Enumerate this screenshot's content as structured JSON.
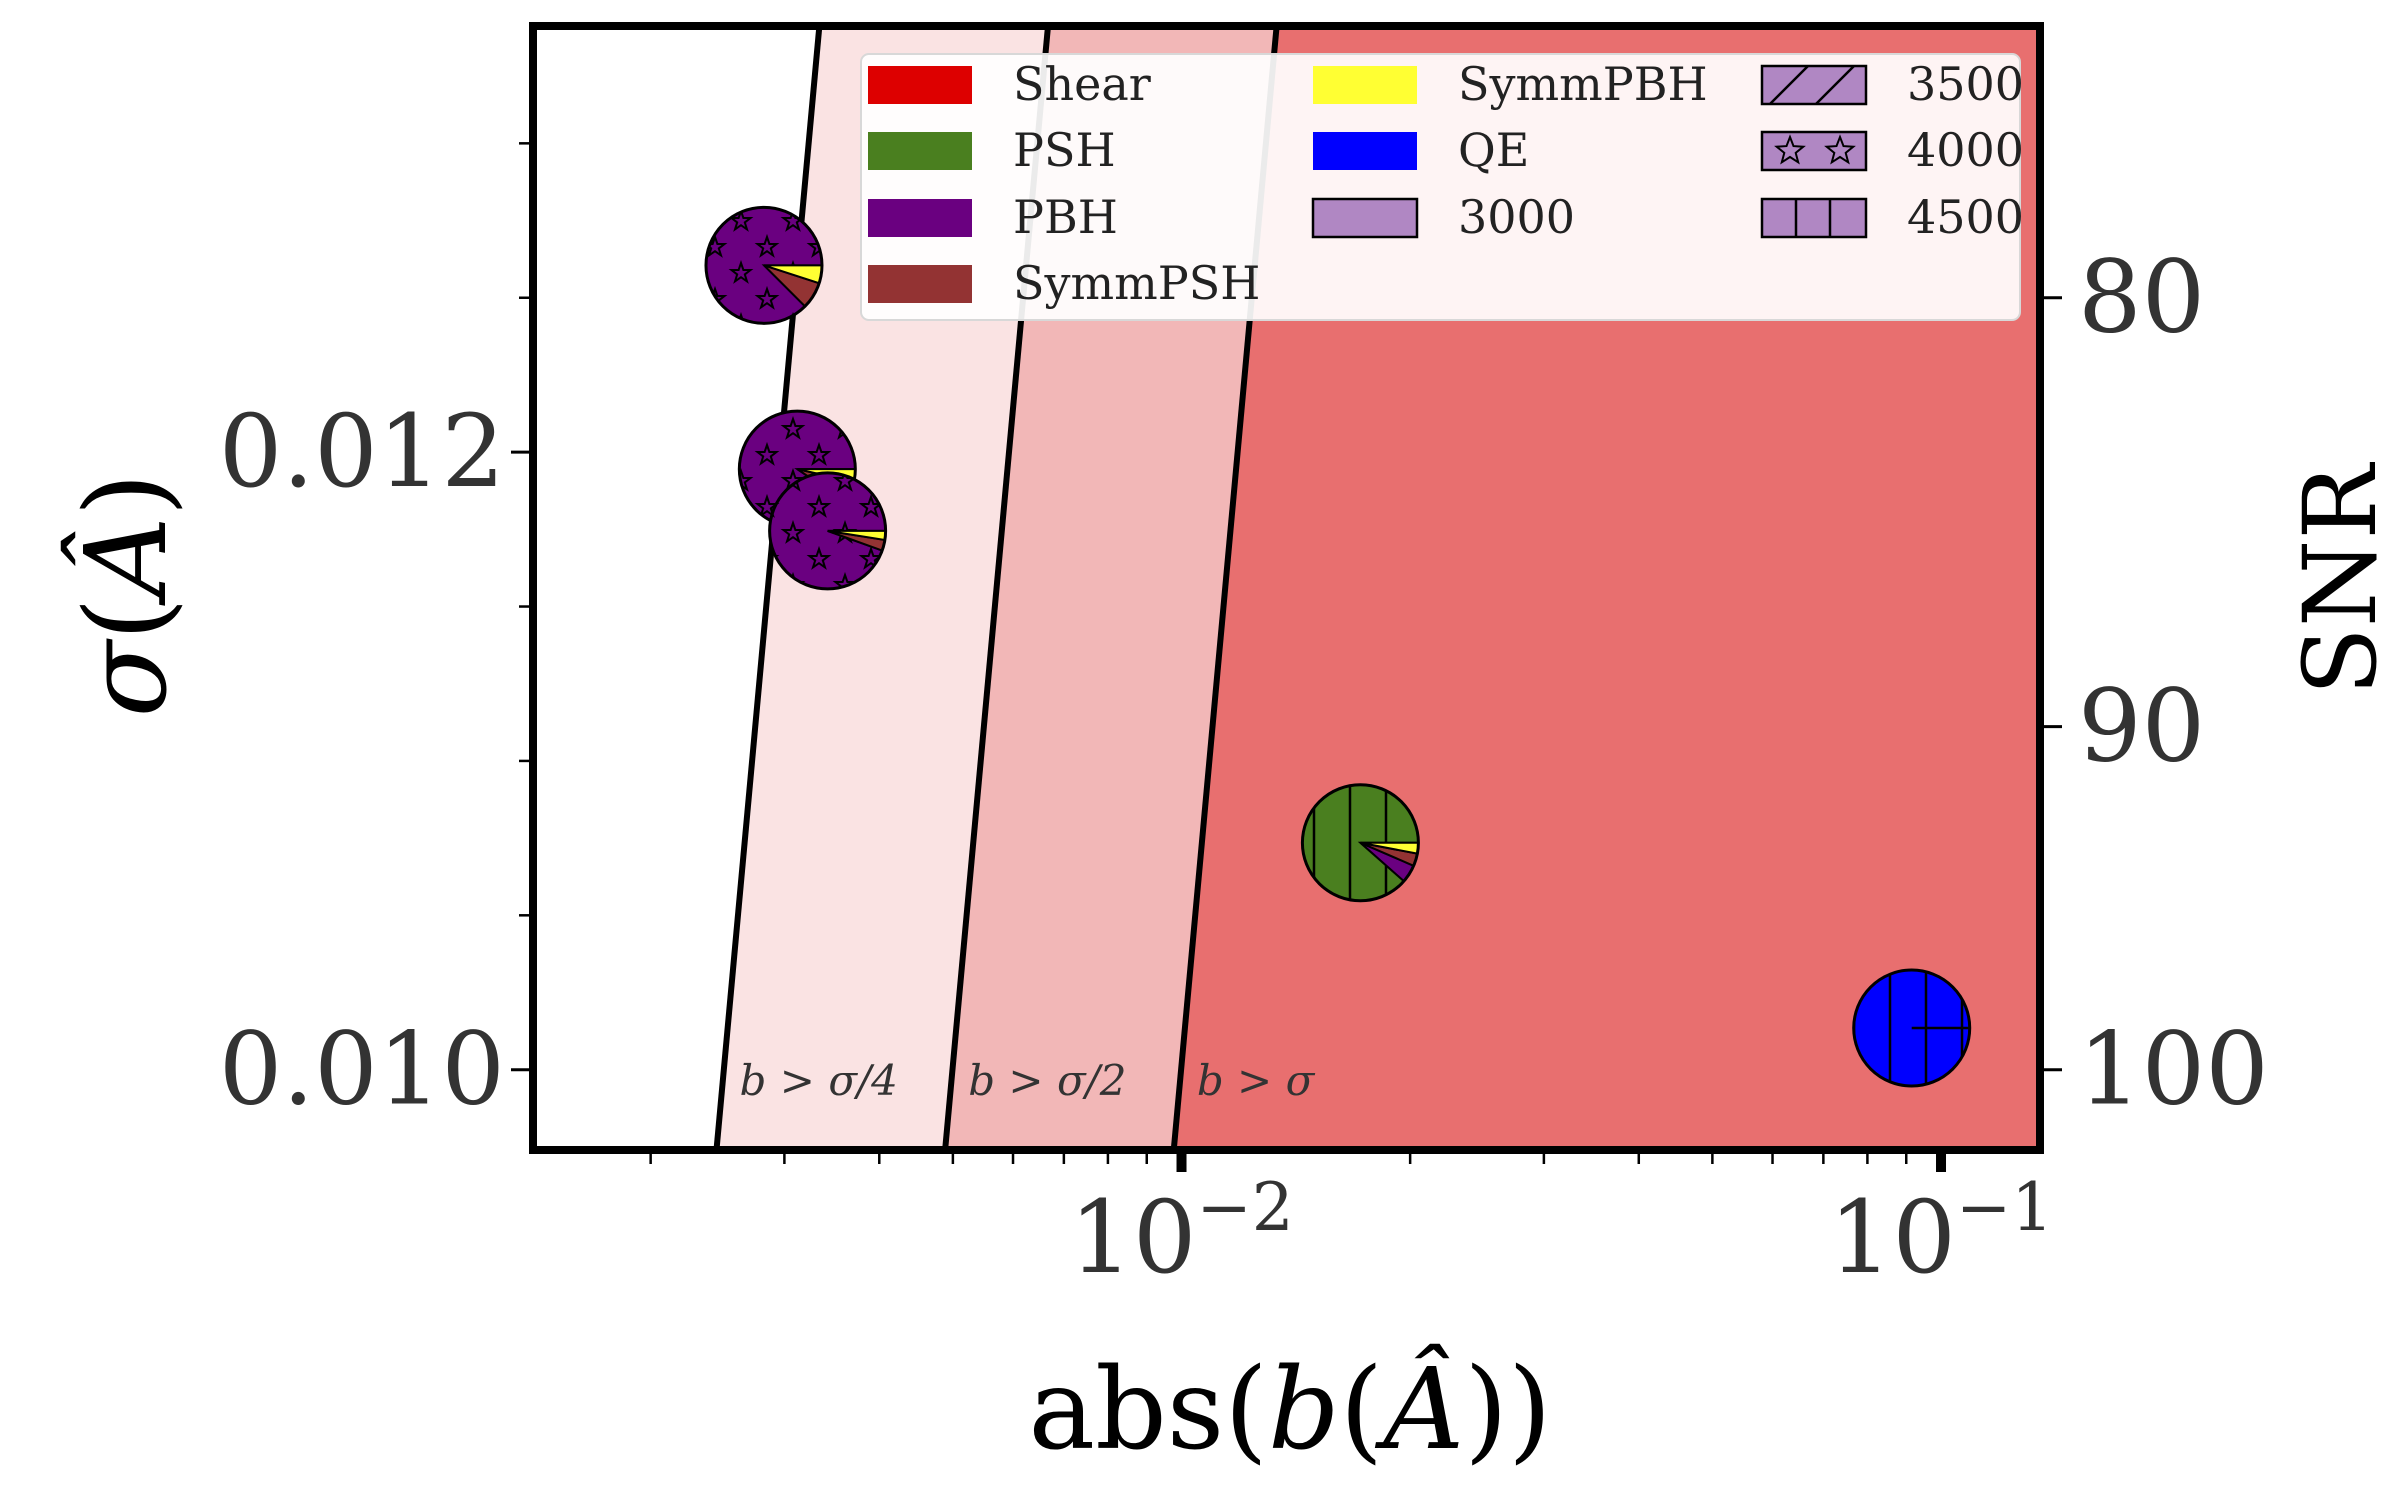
{
  "chart_data": {
    "type": "scatter",
    "subtype": "pie-markers",
    "xlabel": "abs(b(Â))",
    "ylabel": "σ(Â)",
    "y2label": "SNR",
    "x_scale": "log",
    "xlim": [
      0.0014,
      0.135
    ],
    "ylim": [
      0.00974,
      0.01338
    ],
    "x_ticks": [
      {
        "value": 0.01,
        "base": "10",
        "exp": "−2"
      },
      {
        "value": 0.1,
        "base": "10",
        "exp": "−1"
      }
    ],
    "x_minor_ticks": [
      0.002,
      0.003,
      0.004,
      0.005,
      0.006,
      0.007,
      0.008,
      0.009,
      0.02,
      0.03,
      0.04,
      0.05,
      0.06,
      0.07,
      0.08,
      0.09
    ],
    "y_ticks": [
      {
        "value": 0.01,
        "label": "0.010"
      },
      {
        "value": 0.012,
        "label": "0.012"
      }
    ],
    "y_minor_ticks": [
      0.0105,
      0.011,
      0.0115,
      0.0125,
      0.013
    ],
    "snr_ticks": [
      {
        "value": 80,
        "label": "80"
      },
      {
        "value": 90,
        "label": "90"
      },
      {
        "value": 100,
        "label": "100"
      }
    ],
    "regions": [
      {
        "label": "b > σ/4",
        "factor": 0.25,
        "color": "#fae3e3"
      },
      {
        "label": "b > σ/2",
        "factor": 0.5,
        "color": "#f2b7b7"
      },
      {
        "label": "b > σ",
        "factor": 1.0,
        "color": "#e86f6f"
      }
    ],
    "series": [
      {
        "name": "Shear",
        "color": "#dd0000"
      },
      {
        "name": "PSH",
        "color": "#4a7f1f"
      },
      {
        "name": "PBH",
        "color": "#6a0080"
      },
      {
        "name": "SymmPSH",
        "color": "#933333"
      },
      {
        "name": "SymmPBH",
        "color": "#ffff33"
      },
      {
        "name": "QE",
        "color": "#0000ff"
      }
    ],
    "hatch_legend": [
      {
        "name": "3000",
        "hatch": "none"
      },
      {
        "name": "3500",
        "hatch": "slash"
      },
      {
        "name": "4000",
        "hatch": "star"
      },
      {
        "name": "4500",
        "hatch": "vline"
      }
    ],
    "points": [
      {
        "x": 0.00282,
        "y": 0.012605,
        "hatch": "star",
        "fractions": [
          [
            "PBH",
            0.875
          ],
          [
            "SymmPSH",
            0.075
          ],
          [
            "SymmPBH",
            0.05
          ]
        ]
      },
      {
        "x": 0.00312,
        "y": 0.011945,
        "hatch": "star",
        "fractions": [
          [
            "PBH",
            0.905
          ],
          [
            "SymmPSH",
            0.06
          ],
          [
            "SymmPBH",
            0.035
          ]
        ]
      },
      {
        "x": 0.00342,
        "y": 0.011745,
        "hatch": "star",
        "fractions": [
          [
            "PBH",
            0.945
          ],
          [
            "SymmPSH",
            0.03
          ],
          [
            "SymmPBH",
            0.025
          ]
        ]
      },
      {
        "x": 0.0172,
        "y": 0.010735,
        "hatch": "vline",
        "fractions": [
          [
            "PSH",
            0.885
          ],
          [
            "PBH",
            0.05
          ],
          [
            "SymmPSH",
            0.035
          ],
          [
            "SymmPBH",
            0.03
          ]
        ]
      },
      {
        "x": 0.0915,
        "y": 0.010135,
        "hatch": "vline",
        "fractions": [
          [
            "QE",
            1.0
          ]
        ]
      }
    ],
    "colors": {
      "background": "#ffffff",
      "axis": "#000000",
      "label_gray": "#333333"
    }
  }
}
